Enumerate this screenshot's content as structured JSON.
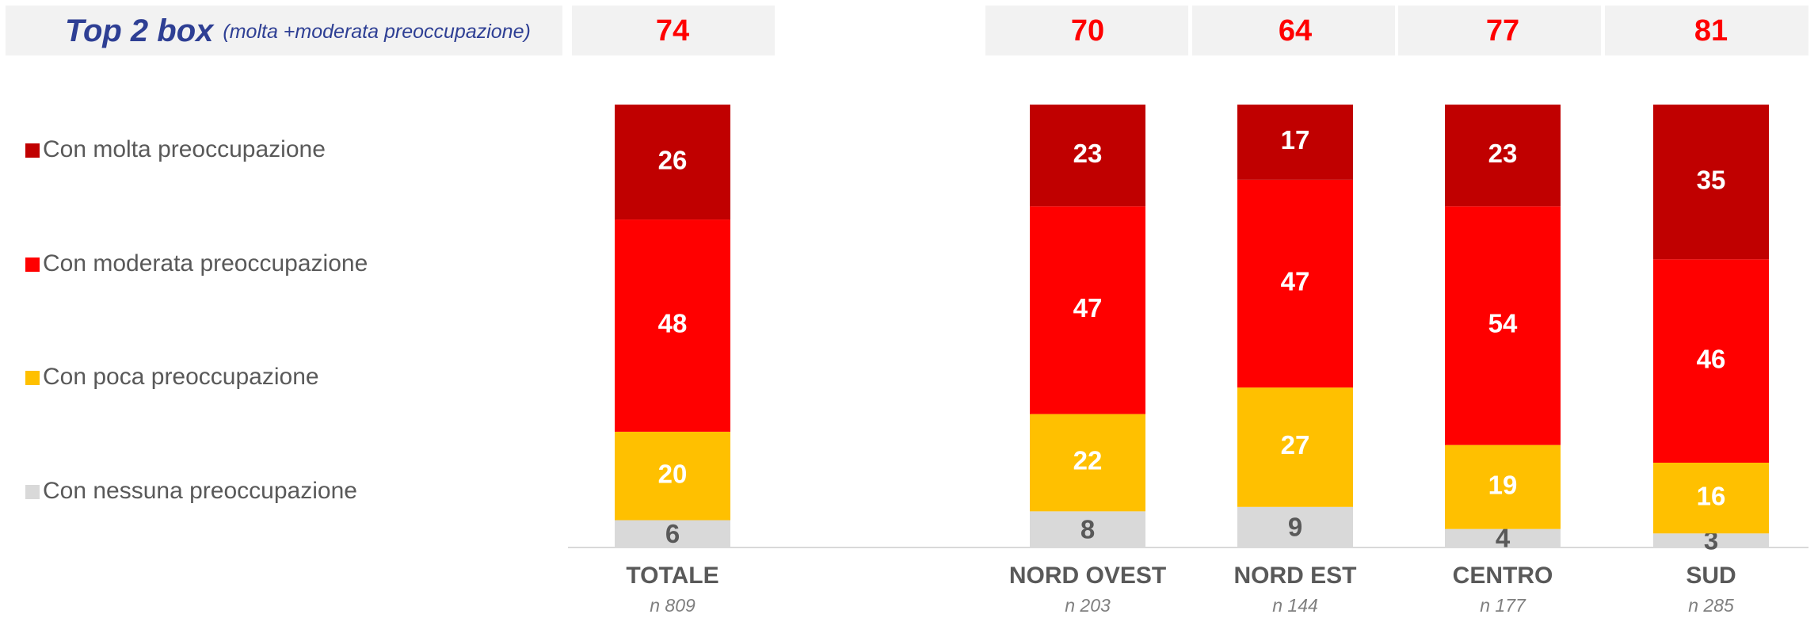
{
  "chart_data": {
    "type": "bar",
    "stacked": true,
    "title": "Top 2 box",
    "subtitle": "(molta +moderata preoccupazione)",
    "top2_box": [
      74,
      70,
      64,
      77,
      81
    ],
    "categories": [
      "TOTALE",
      "NORD OVEST",
      "NORD EST",
      "CENTRO",
      "SUD"
    ],
    "sample_sizes": [
      "n 809",
      "n 203",
      "n 144",
      "n 177",
      "n 285"
    ],
    "series": [
      {
        "name": "Con molta preoccupazione",
        "color": "#c00000",
        "values": [
          26,
          23,
          17,
          23,
          35
        ]
      },
      {
        "name": "Con moderata preoccupazione",
        "color": "#ff0000",
        "values": [
          48,
          47,
          47,
          54,
          46
        ]
      },
      {
        "name": "Con poca preoccupazione",
        "color": "#ffc000",
        "values": [
          20,
          22,
          27,
          19,
          16
        ]
      },
      {
        "name": "Con nessuna preoccupazione",
        "color": "#d9d9d9",
        "values": [
          6,
          8,
          9,
          4,
          3
        ]
      }
    ]
  }
}
